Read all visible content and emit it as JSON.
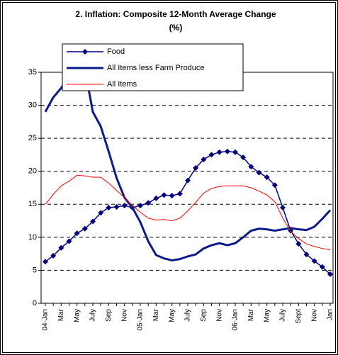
{
  "chart_data": {
    "type": "line",
    "title": "2. Inflation: Composite 12-Month Average Change",
    "subtitle": "(%)",
    "categories": [
      "04-Jan",
      null,
      "Mar",
      null,
      "May",
      null,
      "July",
      null,
      "Sep",
      null,
      "Nov",
      null,
      "05-Jan",
      null,
      "Mar",
      null,
      "May",
      null,
      "July",
      null,
      "Sep",
      null,
      "Nov",
      null,
      "06-Jan",
      null,
      "Mar",
      null,
      "May",
      null,
      "July",
      null,
      "Sept",
      null,
      "Nov",
      null,
      "Jan"
    ],
    "ylim": [
      0,
      35
    ],
    "yticks": [
      0,
      5,
      10,
      15,
      20,
      25,
      30,
      35
    ],
    "grid": true,
    "legend": "top",
    "series": [
      {
        "name": "Food",
        "color": "#000080",
        "marker": "diamond",
        "width": 1.5,
        "values": [
          6.3,
          7.2,
          8.4,
          9.4,
          10.6,
          11.3,
          12.4,
          13.7,
          14.5,
          14.6,
          14.8,
          14.5,
          14.8,
          15.2,
          15.9,
          16.4,
          16.3,
          16.6,
          18.6,
          20.5,
          21.8,
          22.5,
          22.9,
          23.0,
          22.9,
          22.1,
          20.7,
          19.8,
          19.1,
          17.9,
          14.5,
          11.0,
          9.0,
          7.4,
          6.4,
          5.5,
          4.4
        ]
      },
      {
        "name": "All Items less Farm Produce",
        "color": "#0c1a8c",
        "width": 3,
        "values": [
          29.0,
          31.2,
          32.6,
          34.5,
          36.5,
          35.5,
          29.0,
          26.8,
          23.0,
          19.0,
          16.0,
          14.5,
          12.3,
          9.4,
          7.3,
          6.8,
          6.5,
          6.7,
          7.1,
          7.4,
          8.3,
          8.8,
          9.1,
          8.8,
          9.1,
          10.0,
          11.0,
          11.3,
          11.2,
          11.0,
          11.2,
          11.4,
          11.2,
          11.1,
          11.6,
          12.8,
          14.1
        ]
      },
      {
        "name": "All Items",
        "color": "#ff0000",
        "width": 1,
        "values": [
          15.0,
          16.5,
          17.8,
          18.5,
          19.4,
          19.3,
          19.1,
          19.1,
          18.2,
          17.1,
          16.0,
          14.8,
          13.8,
          12.9,
          12.6,
          12.7,
          12.5,
          12.9,
          14.0,
          15.3,
          16.7,
          17.4,
          17.7,
          17.8,
          17.8,
          17.8,
          17.5,
          17.0,
          16.4,
          15.4,
          12.9,
          10.9,
          9.8,
          9.0,
          8.6,
          8.3,
          8.1
        ]
      }
    ]
  }
}
